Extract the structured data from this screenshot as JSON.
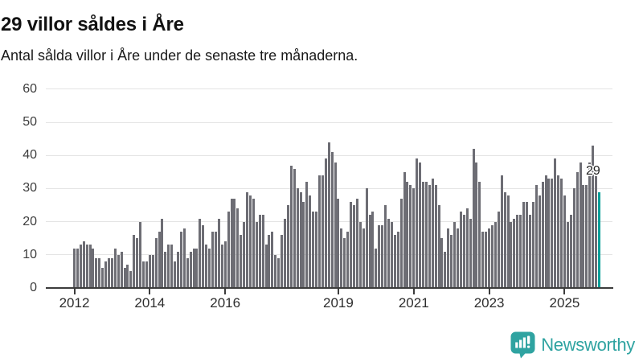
{
  "header": {
    "title": "29 villor såldes i Åre",
    "subtitle": "Antal sålda villor i Åre under de senaste tre månaderna."
  },
  "chart_data": {
    "type": "bar",
    "title": "29 villor såldes i Åre",
    "subtitle": "Antal sålda villor i Åre under de senaste tre månaderna.",
    "xlabel": "",
    "ylabel": "",
    "frequency": "monthly",
    "start_month": "2012-01",
    "ylim": [
      0,
      60
    ],
    "yticks": [
      0,
      10,
      20,
      30,
      40,
      50,
      60
    ],
    "xtick_years": [
      2012,
      2014,
      2016,
      2019,
      2021,
      2023,
      2025
    ],
    "grid": "horizontal",
    "legend": "none",
    "bar_color": "#6d6d74",
    "highlight_color": "#0b9f99",
    "highlight_last_bar": true,
    "annotation": {
      "text": "29",
      "value": 29
    },
    "values": [
      12,
      12,
      13,
      14,
      13,
      13,
      12,
      9,
      9,
      6,
      8,
      9,
      9,
      12,
      10,
      11,
      6,
      7,
      5,
      16,
      15,
      20,
      8,
      8,
      10,
      10,
      15,
      17,
      21,
      11,
      13,
      13,
      8,
      11,
      17,
      18,
      9,
      11,
      12,
      12,
      21,
      19,
      13,
      12,
      17,
      17,
      21,
      13,
      14,
      23,
      27,
      27,
      24,
      16,
      20,
      29,
      28,
      27,
      20,
      22,
      22,
      13,
      16,
      17,
      10,
      9,
      16,
      21,
      25,
      37,
      36,
      30,
      29,
      26,
      32,
      28,
      23,
      23,
      34,
      34,
      39,
      44,
      41,
      38,
      27,
      18,
      15,
      17,
      26,
      25,
      27,
      20,
      18,
      30,
      22,
      23,
      12,
      19,
      19,
      25,
      21,
      20,
      16,
      17,
      27,
      35,
      32,
      31,
      30,
      39,
      38,
      32,
      32,
      31,
      33,
      31,
      25,
      15,
      11,
      18,
      16,
      20,
      18,
      23,
      22,
      24,
      21,
      42,
      38,
      32,
      17,
      17,
      18,
      19,
      20,
      23,
      34,
      29,
      28,
      20,
      21,
      22,
      22,
      26,
      26,
      22,
      26,
      31,
      28,
      32,
      34,
      33,
      33,
      39,
      34,
      33,
      28,
      20,
      22,
      30,
      35,
      38,
      31,
      31,
      38,
      43,
      36,
      29
    ]
  },
  "footer": {
    "brand": "Newsworthy",
    "brand_color": "#2fa3a1",
    "logo_icon": "bar-chart-speech-bubble-icon"
  }
}
